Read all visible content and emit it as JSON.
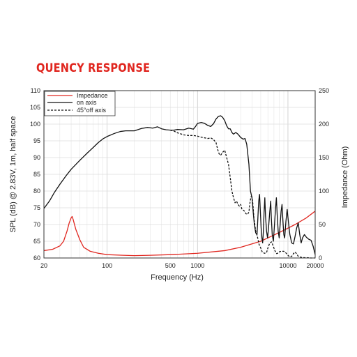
{
  "page": {
    "title": "QUENCY RESPONSE",
    "title_color": "#e0261f"
  },
  "chart_data": {
    "type": "line",
    "xscale": "log",
    "xlim": [
      20,
      20000
    ],
    "ylim": [
      60,
      110
    ],
    "y2lim": [
      0,
      250
    ],
    "grid": true,
    "legend_position": "top-left",
    "xlabel": "Frequency (Hz)",
    "ylabel": "SPL (dB) @ 2.83V, 1m, half space",
    "y2label": "Impedance (Ohm)",
    "x_ticks": [
      {
        "value": 20,
        "label": "20"
      },
      {
        "value": 100,
        "label": "100"
      },
      {
        "value": 500,
        "label": "500"
      },
      {
        "value": 1000,
        "label": "1000"
      },
      {
        "value": 10000,
        "label": "10000"
      },
      {
        "value": 20000,
        "label": "20000"
      }
    ],
    "y_ticks": [
      {
        "value": 60,
        "label": "60"
      },
      {
        "value": 65,
        "label": "65"
      },
      {
        "value": 70,
        "label": "70"
      },
      {
        "value": 75,
        "label": "75"
      },
      {
        "value": 80,
        "label": "80"
      },
      {
        "value": 85,
        "label": "85"
      },
      {
        "value": 90,
        "label": "90"
      },
      {
        "value": 95,
        "label": "95"
      },
      {
        "value": 100,
        "label": "100"
      },
      {
        "value": 105,
        "label": "105"
      },
      {
        "value": 110,
        "label": "110"
      }
    ],
    "y2_ticks": [
      {
        "value": 0,
        "label": "0"
      },
      {
        "value": 50,
        "label": "50"
      },
      {
        "value": 100,
        "label": "100"
      },
      {
        "value": 150,
        "label": "150"
      },
      {
        "value": 200,
        "label": "200"
      },
      {
        "value": 250,
        "label": "250"
      }
    ],
    "series": [
      {
        "name": "Impedance",
        "axis": "right",
        "color": "#e0261f",
        "dash": "solid",
        "points": [
          [
            20,
            11
          ],
          [
            25,
            13
          ],
          [
            30,
            18
          ],
          [
            33,
            25
          ],
          [
            36,
            40
          ],
          [
            38,
            52
          ],
          [
            40,
            60
          ],
          [
            41,
            62
          ],
          [
            42,
            58
          ],
          [
            45,
            43
          ],
          [
            50,
            27
          ],
          [
            55,
            16
          ],
          [
            65,
            10
          ],
          [
            80,
            7
          ],
          [
            100,
            5
          ],
          [
            150,
            4
          ],
          [
            200,
            3.5
          ],
          [
            300,
            4
          ],
          [
            500,
            5
          ],
          [
            1000,
            7
          ],
          [
            2000,
            11
          ],
          [
            3000,
            16
          ],
          [
            5000,
            25
          ],
          [
            8000,
            38
          ],
          [
            12000,
            50
          ],
          [
            16000,
            60
          ],
          [
            20000,
            70
          ]
        ]
      },
      {
        "name": "on axis",
        "axis": "left",
        "color": "#111111",
        "dash": "solid",
        "points": [
          [
            20,
            74.8
          ],
          [
            23,
            77
          ],
          [
            26,
            79.5
          ],
          [
            30,
            82
          ],
          [
            35,
            84.5
          ],
          [
            40,
            86.5
          ],
          [
            50,
            89.2
          ],
          [
            60,
            91.3
          ],
          [
            70,
            93
          ],
          [
            80,
            94.5
          ],
          [
            90,
            95.6
          ],
          [
            100,
            96.3
          ],
          [
            120,
            97.2
          ],
          [
            140,
            97.8
          ],
          [
            160,
            98
          ],
          [
            200,
            98
          ],
          [
            240,
            98.7
          ],
          [
            280,
            99
          ],
          [
            320,
            98.8
          ],
          [
            360,
            99.2
          ],
          [
            400,
            98.6
          ],
          [
            450,
            98.3
          ],
          [
            500,
            98.2
          ],
          [
            550,
            98.2
          ],
          [
            600,
            98.4
          ],
          [
            700,
            98.3
          ],
          [
            800,
            98.8
          ],
          [
            900,
            98.5
          ],
          [
            950,
            99.3
          ],
          [
            1000,
            100.2
          ],
          [
            1100,
            100.5
          ],
          [
            1200,
            100.2
          ],
          [
            1300,
            99.6
          ],
          [
            1400,
            99.3
          ],
          [
            1500,
            100.1
          ],
          [
            1600,
            101.5
          ],
          [
            1700,
            102.3
          ],
          [
            1800,
            102.5
          ],
          [
            1900,
            102
          ],
          [
            2000,
            101
          ],
          [
            2100,
            99.5
          ],
          [
            2200,
            98.6
          ],
          [
            2300,
            98.6
          ],
          [
            2400,
            97.5
          ],
          [
            2500,
            97
          ],
          [
            2650,
            97.5
          ],
          [
            2800,
            97
          ],
          [
            2900,
            96.5
          ],
          [
            3000,
            96
          ],
          [
            3200,
            95.5
          ],
          [
            3350,
            95.7
          ],
          [
            3500,
            94
          ],
          [
            3700,
            88
          ],
          [
            3850,
            80
          ],
          [
            4000,
            78
          ],
          [
            4150,
            73
          ],
          [
            4250,
            70
          ],
          [
            4400,
            67.5
          ],
          [
            4550,
            67
          ],
          [
            4650,
            72
          ],
          [
            4750,
            77
          ],
          [
            4850,
            79
          ],
          [
            4950,
            74
          ],
          [
            5050,
            69
          ],
          [
            5150,
            66
          ],
          [
            5250,
            64.5
          ],
          [
            5350,
            68
          ],
          [
            5450,
            74
          ],
          [
            5550,
            78
          ],
          [
            5650,
            72.5
          ],
          [
            5800,
            68
          ],
          [
            5950,
            66
          ],
          [
            6100,
            69
          ],
          [
            6300,
            74
          ],
          [
            6450,
            77
          ],
          [
            6550,
            72
          ],
          [
            6700,
            67
          ],
          [
            6900,
            65
          ],
          [
            7100,
            70
          ],
          [
            7300,
            75
          ],
          [
            7450,
            78
          ],
          [
            7600,
            73
          ],
          [
            7800,
            68
          ],
          [
            8000,
            66
          ],
          [
            8200,
            70
          ],
          [
            8400,
            74
          ],
          [
            8600,
            76
          ],
          [
            8800,
            71
          ],
          [
            9000,
            67
          ],
          [
            9200,
            66
          ],
          [
            9500,
            71
          ],
          [
            9800,
            74.5
          ],
          [
            10100,
            71
          ],
          [
            10500,
            67
          ],
          [
            11000,
            64.5
          ],
          [
            11500,
            64.2
          ],
          [
            12000,
            66.5
          ],
          [
            12500,
            69
          ],
          [
            13000,
            70.5
          ],
          [
            13500,
            67
          ],
          [
            14000,
            64.5
          ],
          [
            14500,
            66
          ],
          [
            15200,
            67
          ],
          [
            16000,
            66.2
          ],
          [
            17000,
            65.6
          ],
          [
            18000,
            65.3
          ],
          [
            19000,
            63.5
          ],
          [
            20000,
            61
          ]
        ]
      },
      {
        "name": "45°off axis",
        "axis": "left",
        "color": "#111111",
        "dash": "dashed",
        "points": [
          [
            500,
            98.2
          ],
          [
            550,
            97.9
          ],
          [
            600,
            97.4
          ],
          [
            650,
            97.1
          ],
          [
            700,
            96.8
          ],
          [
            750,
            96.7
          ],
          [
            800,
            96.6
          ],
          [
            900,
            96.6
          ],
          [
            1000,
            96.4
          ],
          [
            1100,
            96.1
          ],
          [
            1200,
            95.9
          ],
          [
            1300,
            95.7
          ],
          [
            1400,
            95.9
          ],
          [
            1500,
            95.4
          ],
          [
            1600,
            94.5
          ],
          [
            1650,
            93
          ],
          [
            1700,
            91.7
          ],
          [
            1750,
            90.9
          ],
          [
            1800,
            90.7
          ],
          [
            1900,
            91.6
          ],
          [
            2000,
            92.2
          ],
          [
            2100,
            90
          ],
          [
            2200,
            88
          ],
          [
            2300,
            84
          ],
          [
            2400,
            80
          ],
          [
            2500,
            78
          ],
          [
            2600,
            76.5
          ],
          [
            2700,
            77
          ],
          [
            2800,
            76
          ],
          [
            2900,
            75.5
          ],
          [
            3000,
            76
          ],
          [
            3100,
            74.5
          ],
          [
            3200,
            74.3
          ],
          [
            3300,
            74
          ],
          [
            3400,
            73.4
          ],
          [
            3500,
            73
          ],
          [
            3600,
            73.2
          ],
          [
            3700,
            73.7
          ],
          [
            3800,
            76.5
          ],
          [
            3900,
            78.3
          ],
          [
            4000,
            78.3
          ],
          [
            4100,
            76
          ],
          [
            4200,
            72
          ],
          [
            4300,
            70
          ],
          [
            4400,
            68
          ],
          [
            4500,
            67.2
          ],
          [
            4600,
            66.3
          ],
          [
            4800,
            64
          ],
          [
            5000,
            63
          ],
          [
            5200,
            61.8
          ],
          [
            5500,
            61.4
          ],
          [
            5800,
            61.6
          ],
          [
            6000,
            63
          ],
          [
            6300,
            64.5
          ],
          [
            6600,
            64.8
          ],
          [
            6900,
            63.4
          ],
          [
            7200,
            62.1
          ],
          [
            7500,
            61.3
          ],
          [
            7800,
            61.5
          ],
          [
            8100,
            61.9
          ],
          [
            8500,
            62
          ],
          [
            9000,
            62
          ],
          [
            9500,
            61.5
          ],
          [
            10000,
            60.8
          ],
          [
            10500,
            60.3
          ],
          [
            11000,
            60.5
          ],
          [
            11500,
            61.3
          ],
          [
            12000,
            61.8
          ],
          [
            12500,
            61.2
          ],
          [
            13000,
            60.5
          ],
          [
            14000,
            60.2
          ],
          [
            15000,
            60.1
          ],
          [
            16000,
            60.1
          ],
          [
            18000,
            60
          ],
          [
            20000,
            60
          ]
        ]
      }
    ]
  }
}
